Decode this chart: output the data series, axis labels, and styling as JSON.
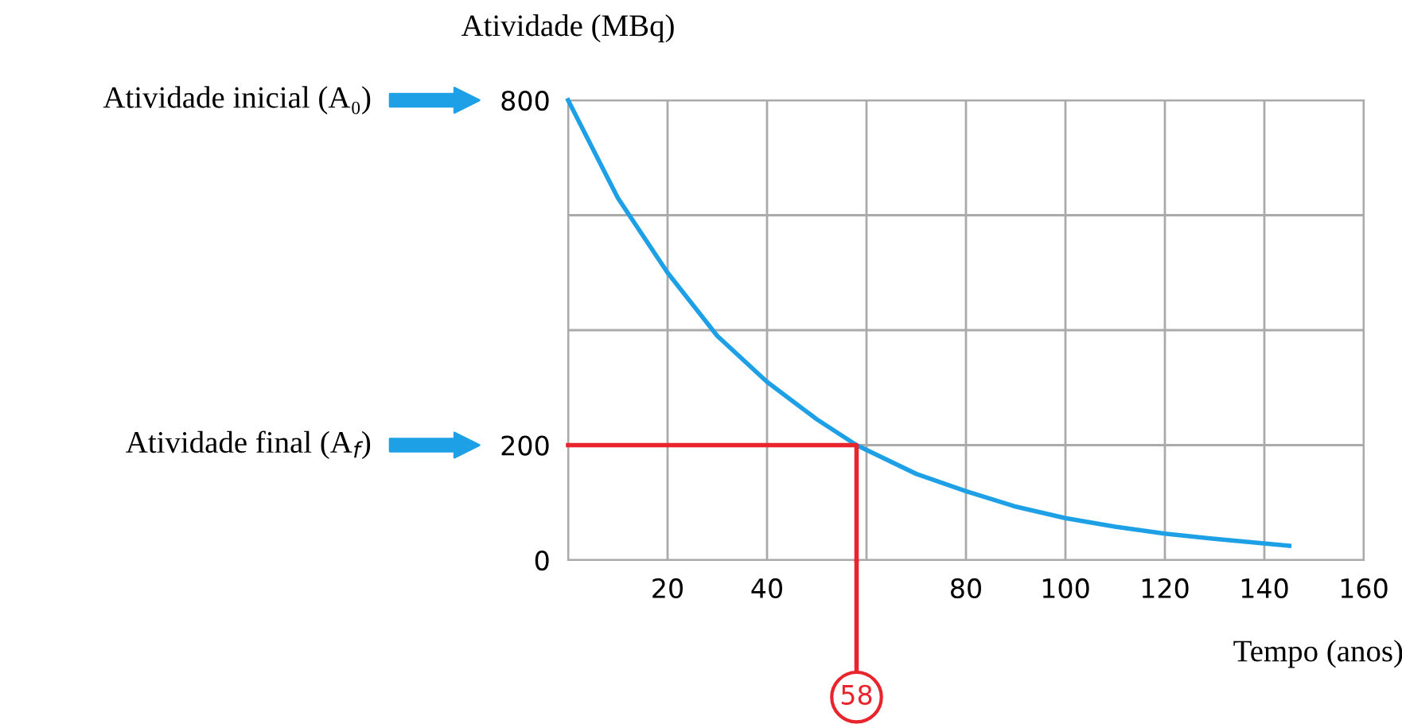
{
  "chart_data": {
    "type": "line",
    "xlabel": "Tempo (anos)",
    "ylabel": "Atividade (MBq)",
    "series": [
      {
        "x": [
          0,
          10,
          20,
          30,
          40,
          50,
          58,
          70,
          80,
          90,
          100,
          110,
          120,
          130,
          145
        ],
        "values": [
          800,
          630,
          500,
          390,
          310,
          245,
          200,
          150,
          120,
          93,
          73,
          58,
          46,
          37,
          25
        ],
        "color": "#1ea0e6"
      },
      {
        "x": [
          0,
          58,
          58
        ],
        "values": [
          200,
          200,
          0
        ],
        "color": "#e8242c"
      }
    ],
    "annotations": [
      "Atividade inicial (A₀)",
      "Atividade final (A$_{f}$)",
      {
        "text": "58",
        "x": 58,
        "y": 0
      }
    ],
    "xlim": [
      0,
      160
    ],
    "ylim": [
      0,
      800
    ],
    "xticks": [
      {
        "value": 0,
        "label": null
      },
      20,
      40,
      {
        "value": 60,
        "label": null
      },
      80,
      100,
      120,
      140,
      160
    ],
    "yticks": [
      0,
      200,
      {
        "value": 400,
        "label": null
      },
      {
        "value": 600,
        "label": null
      },
      800
    ],
    "grid": true
  }
}
